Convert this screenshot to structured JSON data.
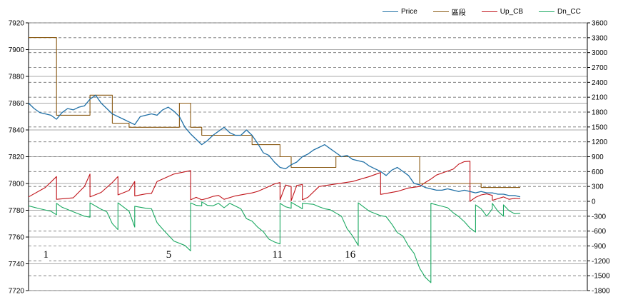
{
  "chart_data": {
    "type": "line",
    "legend": {
      "placement": "top-right",
      "items": [
        {
          "name": "Price",
          "color": "#1f6fa5"
        },
        {
          "name": "區段",
          "color": "#8a5a14"
        },
        {
          "name": "Up_CB",
          "color": "#c0141a"
        },
        {
          "name": "Dn_CC",
          "color": "#1aa861"
        }
      ]
    },
    "left_axis": {
      "ylim": [
        7720,
        7920
      ],
      "ticks": [
        "7920",
        "7900",
        "7880",
        "7860",
        "7840",
        "7820",
        "7800",
        "7780",
        "7760",
        "7740",
        "7720"
      ]
    },
    "right_axis": {
      "ylim": [
        -1800,
        3600
      ],
      "ticks": [
        "3600",
        "3300",
        "3000",
        "2700",
        "2400",
        "2100",
        "1800",
        "1500",
        "1200",
        "900",
        "600",
        "300",
        "0",
        "-300",
        "-600",
        "-900",
        "-1200",
        "-1500",
        "-1800"
      ]
    },
    "grid": true,
    "x_range": [
      0,
      100
    ],
    "segment_labels": [
      {
        "text": "1",
        "x": 3
      },
      {
        "text": "5",
        "x": 25
      },
      {
        "text": "11",
        "x": 44
      },
      {
        "text": "16",
        "x": 57
      }
    ],
    "series": [
      {
        "name": "Price",
        "axis": "left",
        "points": [
          [
            0,
            7860
          ],
          [
            1,
            7856
          ],
          [
            2,
            7853
          ],
          [
            3,
            7852
          ],
          [
            4,
            7851
          ],
          [
            5,
            7848
          ],
          [
            6,
            7853
          ],
          [
            7,
            7856
          ],
          [
            8,
            7855
          ],
          [
            9,
            7857
          ],
          [
            10,
            7858
          ],
          [
            11,
            7863
          ],
          [
            12,
            7866
          ],
          [
            13,
            7860
          ],
          [
            14,
            7856
          ],
          [
            15,
            7852
          ],
          [
            16,
            7850
          ],
          [
            17,
            7848
          ],
          [
            18,
            7846
          ],
          [
            19,
            7844
          ],
          [
            20,
            7850
          ],
          [
            21,
            7851
          ],
          [
            22,
            7852
          ],
          [
            23,
            7851
          ],
          [
            24,
            7855
          ],
          [
            25,
            7857
          ],
          [
            26,
            7854
          ],
          [
            27,
            7850
          ],
          [
            28,
            7842
          ],
          [
            29,
            7837
          ],
          [
            30,
            7833
          ],
          [
            31,
            7829
          ],
          [
            32,
            7832
          ],
          [
            33,
            7836
          ],
          [
            34,
            7839
          ],
          [
            35,
            7842
          ],
          [
            36,
            7838
          ],
          [
            37,
            7836
          ],
          [
            38,
            7836
          ],
          [
            39,
            7840
          ],
          [
            40,
            7836
          ],
          [
            41,
            7830
          ],
          [
            42,
            7823
          ],
          [
            43,
            7821
          ],
          [
            44,
            7816
          ],
          [
            45,
            7812
          ],
          [
            46,
            7811
          ],
          [
            47,
            7814
          ],
          [
            48,
            7816
          ],
          [
            49,
            7820
          ],
          [
            50,
            7822
          ],
          [
            51,
            7825
          ],
          [
            52,
            7827
          ],
          [
            53,
            7829
          ],
          [
            54,
            7826
          ],
          [
            55,
            7823
          ],
          [
            56,
            7820
          ],
          [
            57,
            7821
          ],
          [
            58,
            7818
          ],
          [
            59,
            7817
          ],
          [
            60,
            7816
          ],
          [
            61,
            7813
          ],
          [
            62,
            7811
          ],
          [
            63,
            7809
          ],
          [
            64,
            7806
          ],
          [
            65,
            7810
          ],
          [
            66,
            7812
          ],
          [
            67,
            7809
          ],
          [
            68,
            7806
          ],
          [
            69,
            7800
          ],
          [
            70,
            7799
          ],
          [
            71,
            7797
          ],
          [
            72,
            7796
          ],
          [
            73,
            7795
          ],
          [
            74,
            7795
          ],
          [
            75,
            7796
          ],
          [
            76,
            7795
          ],
          [
            77,
            7794
          ],
          [
            78,
            7795
          ],
          [
            79,
            7794
          ],
          [
            80,
            7793
          ],
          [
            81,
            7794
          ],
          [
            82,
            7793
          ],
          [
            83,
            7793
          ],
          [
            84,
            7792
          ],
          [
            85,
            7792
          ],
          [
            86,
            7791
          ],
          [
            87,
            7791
          ],
          [
            88,
            7790
          ]
        ]
      },
      {
        "name": "區段",
        "axis": "left",
        "points": [
          [
            0,
            7909
          ],
          [
            5,
            7909
          ],
          [
            5,
            7851
          ],
          [
            11,
            7851
          ],
          [
            11,
            7866
          ],
          [
            15,
            7866
          ],
          [
            15,
            7845
          ],
          [
            18,
            7845
          ],
          [
            18,
            7842
          ],
          [
            27,
            7842
          ],
          [
            27,
            7860
          ],
          [
            29,
            7860
          ],
          [
            29,
            7842
          ],
          [
            31,
            7842
          ],
          [
            31,
            7836
          ],
          [
            40,
            7836
          ],
          [
            40,
            7829
          ],
          [
            45,
            7829
          ],
          [
            45,
            7820
          ],
          [
            47,
            7820
          ],
          [
            47,
            7812
          ],
          [
            55,
            7812
          ],
          [
            55,
            7820
          ],
          [
            70,
            7820
          ],
          [
            70,
            7800
          ],
          [
            81,
            7800
          ],
          [
            81,
            7797
          ],
          [
            88,
            7797
          ]
        ]
      },
      {
        "name": "Up_CB",
        "axis": "right",
        "points": [
          [
            0,
            90
          ],
          [
            3,
            280
          ],
          [
            5,
            500
          ],
          [
            5,
            40
          ],
          [
            8,
            70
          ],
          [
            10,
            300
          ],
          [
            11,
            550
          ],
          [
            11,
            90
          ],
          [
            13,
            180
          ],
          [
            15,
            380
          ],
          [
            16,
            500
          ],
          [
            16,
            130
          ],
          [
            18,
            220
          ],
          [
            19,
            400
          ],
          [
            19,
            110
          ],
          [
            21,
            150
          ],
          [
            22,
            160
          ],
          [
            23,
            400
          ],
          [
            26,
            550
          ],
          [
            29,
            620
          ],
          [
            29,
            30
          ],
          [
            30,
            80
          ],
          [
            31,
            30
          ],
          [
            32,
            60
          ],
          [
            33,
            100
          ],
          [
            34,
            120
          ],
          [
            35,
            40
          ],
          [
            37,
            110
          ],
          [
            39,
            150
          ],
          [
            40,
            170
          ],
          [
            41,
            200
          ],
          [
            43,
            300
          ],
          [
            44,
            350
          ],
          [
            45,
            380
          ],
          [
            45,
            30
          ],
          [
            46,
            330
          ],
          [
            47,
            300
          ],
          [
            47,
            10
          ],
          [
            48,
            320
          ],
          [
            49,
            340
          ],
          [
            49,
            30
          ],
          [
            50,
            80
          ],
          [
            52,
            300
          ],
          [
            55,
            350
          ],
          [
            58,
            400
          ],
          [
            61,
            500
          ],
          [
            63,
            580
          ],
          [
            63,
            140
          ],
          [
            66,
            200
          ],
          [
            68,
            270
          ],
          [
            70,
            300
          ],
          [
            71,
            380
          ],
          [
            72,
            450
          ],
          [
            73,
            530
          ],
          [
            74,
            570
          ],
          [
            76,
            650
          ],
          [
            77,
            750
          ],
          [
            78,
            800
          ],
          [
            79,
            810
          ],
          [
            79,
            0
          ],
          [
            80,
            80
          ],
          [
            81,
            130
          ],
          [
            82,
            150
          ],
          [
            83,
            120
          ],
          [
            83,
            20
          ],
          [
            85,
            90
          ],
          [
            86,
            40
          ],
          [
            87,
            60
          ],
          [
            88,
            50
          ]
        ]
      },
      {
        "name": "Dn_CC",
        "axis": "right",
        "points": [
          [
            0,
            -90
          ],
          [
            2,
            -150
          ],
          [
            4,
            -200
          ],
          [
            5,
            -270
          ],
          [
            5,
            -40
          ],
          [
            6,
            -120
          ],
          [
            8,
            -210
          ],
          [
            10,
            -300
          ],
          [
            11,
            -320
          ],
          [
            11,
            -30
          ],
          [
            13,
            -160
          ],
          [
            14,
            -210
          ],
          [
            15,
            -450
          ],
          [
            16,
            -570
          ],
          [
            16,
            -30
          ],
          [
            18,
            -200
          ],
          [
            19,
            -520
          ],
          [
            19,
            -100
          ],
          [
            21,
            -140
          ],
          [
            22,
            -150
          ],
          [
            23,
            -430
          ],
          [
            24,
            -560
          ],
          [
            26,
            -800
          ],
          [
            28,
            -890
          ],
          [
            29,
            -1000
          ],
          [
            29,
            -30
          ],
          [
            30,
            -80
          ],
          [
            31,
            -90
          ],
          [
            31,
            -10
          ],
          [
            32,
            -80
          ],
          [
            33,
            -90
          ],
          [
            34,
            -40
          ],
          [
            35,
            -130
          ],
          [
            36,
            -40
          ],
          [
            38,
            -150
          ],
          [
            39,
            -350
          ],
          [
            40,
            -400
          ],
          [
            41,
            -520
          ],
          [
            42,
            -610
          ],
          [
            43,
            -760
          ],
          [
            44,
            -820
          ],
          [
            45,
            -860
          ],
          [
            45,
            -40
          ],
          [
            46,
            -110
          ],
          [
            47,
            -140
          ],
          [
            47,
            -20
          ],
          [
            49,
            -150
          ],
          [
            49,
            -40
          ],
          [
            51,
            -60
          ],
          [
            52,
            -110
          ],
          [
            53,
            -150
          ],
          [
            54,
            -170
          ],
          [
            56,
            -300
          ],
          [
            57,
            -550
          ],
          [
            58,
            -700
          ],
          [
            59,
            -890
          ],
          [
            59,
            -30
          ],
          [
            61,
            -200
          ],
          [
            63,
            -290
          ],
          [
            64,
            -310
          ],
          [
            65,
            -460
          ],
          [
            66,
            -630
          ],
          [
            67,
            -700
          ],
          [
            68,
            -900
          ],
          [
            69,
            -1050
          ],
          [
            70,
            -1350
          ],
          [
            71,
            -1530
          ],
          [
            72,
            -1640
          ],
          [
            72,
            -40
          ],
          [
            73,
            -70
          ],
          [
            74,
            -100
          ],
          [
            75,
            -130
          ],
          [
            76,
            -230
          ],
          [
            77,
            -310
          ],
          [
            78,
            -410
          ],
          [
            79,
            -540
          ],
          [
            80,
            -620
          ],
          [
            80,
            -70
          ],
          [
            81,
            -150
          ],
          [
            82,
            -300
          ],
          [
            83,
            -150
          ],
          [
            83,
            -40
          ],
          [
            84,
            -200
          ],
          [
            85,
            -300
          ],
          [
            85,
            -70
          ],
          [
            86,
            -190
          ],
          [
            87,
            -250
          ],
          [
            88,
            -240
          ]
        ]
      }
    ]
  }
}
